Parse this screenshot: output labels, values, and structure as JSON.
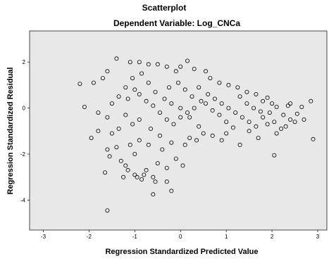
{
  "chart_data": {
    "type": "scatter",
    "title": "Scatterplot",
    "subtitle": "Dependent Variable: Log_CNCa",
    "xlabel": "Regression Standardized Predicted Value",
    "ylabel": "Regression Standardized Residual",
    "xlim": [
      -3.3,
      3.2
    ],
    "ylim": [
      -5.3,
      3.35
    ],
    "x_ticks": [
      -3,
      -2,
      -1,
      0,
      1,
      2,
      3
    ],
    "y_ticks": [
      2,
      0,
      -2,
      -4
    ],
    "grid": false,
    "plot_background": "#e8e8e8",
    "marker": "open-circle",
    "points": [
      [
        -1.95,
        -1.3
      ],
      [
        -1.6,
        -1.8
      ],
      [
        -1.8,
        -1.0
      ],
      [
        -1.5,
        -1.1
      ],
      [
        -1.4,
        -1.7
      ],
      [
        -1.3,
        -2.3
      ],
      [
        -1.2,
        -2.5
      ],
      [
        -1.1,
        -1.6
      ],
      [
        -1.0,
        -2.0
      ],
      [
        -0.9,
        -1.4
      ],
      [
        -1.35,
        -0.9
      ],
      [
        -1.0,
        -2.9
      ],
      [
        -0.8,
        -2.9
      ],
      [
        -0.6,
        -3.0
      ],
      [
        -0.3,
        -3.2
      ],
      [
        -0.2,
        -3.6
      ],
      [
        -0.55,
        -3.2
      ],
      [
        -0.85,
        -3.1
      ],
      [
        -1.25,
        -3.0
      ],
      [
        -0.6,
        -3.75
      ],
      [
        -0.2,
        -1.5
      ],
      [
        -0.4,
        -1.8
      ],
      [
        -0.7,
        -1.6
      ],
      [
        0.1,
        -1.6
      ],
      [
        0.2,
        -1.3
      ],
      [
        0.35,
        -1.4
      ],
      [
        0.5,
        -1.1
      ],
      [
        0.7,
        -1.2
      ],
      [
        1.0,
        -1.1
      ],
      [
        1.3,
        -1.6
      ],
      [
        1.5,
        -1.0
      ],
      [
        1.7,
        -1.3
      ],
      [
        2.05,
        -2.05
      ],
      [
        2.1,
        -1.1
      ],
      [
        2.3,
        -0.8
      ],
      [
        1.9,
        -0.7
      ],
      [
        2.5,
        -0.6
      ],
      [
        2.7,
        -0.5
      ],
      [
        2.9,
        -1.35
      ],
      [
        2.65,
        0.05
      ],
      [
        2.85,
        0.3
      ],
      [
        2.4,
        0.2
      ],
      [
        2.0,
        0.2
      ],
      [
        1.8,
        0.3
      ],
      [
        1.65,
        0.6
      ],
      [
        1.45,
        0.7
      ],
      [
        1.25,
        0.9
      ],
      [
        1.05,
        1.0
      ],
      [
        0.85,
        1.1
      ],
      [
        0.65,
        1.3
      ],
      [
        0.55,
        1.6
      ],
      [
        0.3,
        1.7
      ],
      [
        0.15,
        2.05
      ],
      [
        0.0,
        1.8
      ],
      [
        -0.1,
        1.6
      ],
      [
        -0.3,
        1.8
      ],
      [
        -0.5,
        1.9
      ],
      [
        -0.7,
        1.9
      ],
      [
        -0.9,
        2.0
      ],
      [
        -1.1,
        2.0
      ],
      [
        -1.4,
        2.15
      ],
      [
        -1.6,
        1.6
      ],
      [
        -1.7,
        1.3
      ],
      [
        -1.9,
        1.1
      ],
      [
        -2.2,
        1.05
      ],
      [
        -2.1,
        0.05
      ],
      [
        -1.8,
        -0.2
      ],
      [
        -1.6,
        -0.4
      ],
      [
        -1.5,
        0.2
      ],
      [
        -1.35,
        0.5
      ],
      [
        -1.2,
        0.9
      ],
      [
        -1.05,
        1.3
      ],
      [
        -0.9,
        0.6
      ],
      [
        -0.75,
        0.3
      ],
      [
        -0.6,
        0.1
      ],
      [
        -0.45,
        -0.2
      ],
      [
        -0.3,
        -0.5
      ],
      [
        -0.15,
        -0.7
      ],
      [
        0.0,
        -0.4
      ],
      [
        0.15,
        -0.2
      ],
      [
        0.3,
        0.0
      ],
      [
        0.45,
        0.3
      ],
      [
        0.6,
        0.6
      ],
      [
        0.75,
        0.4
      ],
      [
        0.9,
        0.2
      ],
      [
        1.05,
        0.0
      ],
      [
        1.2,
        -0.2
      ],
      [
        1.35,
        -0.4
      ],
      [
        1.5,
        -0.6
      ],
      [
        1.65,
        -0.8
      ],
      [
        1.8,
        -0.4
      ],
      [
        1.95,
        -0.2
      ],
      [
        2.1,
        0.05
      ],
      [
        2.25,
        -0.3
      ],
      [
        2.4,
        -0.5
      ],
      [
        -0.25,
        0.9
      ],
      [
        -0.05,
        1.1
      ],
      [
        0.1,
        0.8
      ],
      [
        0.25,
        0.5
      ],
      [
        0.4,
        0.9
      ],
      [
        0.55,
        0.2
      ],
      [
        0.7,
        -0.1
      ],
      [
        0.85,
        -0.3
      ],
      [
        1.0,
        -0.6
      ],
      [
        1.15,
        -0.85
      ],
      [
        -0.9,
        -0.5
      ],
      [
        -1.05,
        -0.7
      ],
      [
        -1.2,
        -0.3
      ],
      [
        -0.65,
        -0.9
      ],
      [
        -0.45,
        -1.2
      ],
      [
        -1.55,
        -2.1
      ],
      [
        -1.65,
        -2.8
      ],
      [
        -1.6,
        -4.45
      ],
      [
        -0.95,
        -3.0
      ],
      [
        -0.5,
        -2.4
      ],
      [
        -0.3,
        -2.6
      ],
      [
        -0.1,
        -2.2
      ],
      [
        0.05,
        -2.5
      ],
      [
        -0.75,
        -2.7
      ],
      [
        -1.15,
        -2.7
      ],
      [
        -0.35,
        0.4
      ],
      [
        -0.2,
        0.2
      ],
      [
        0.0,
        0.0
      ],
      [
        0.2,
        -0.4
      ],
      [
        0.4,
        -0.8
      ],
      [
        -0.55,
        0.7
      ],
      [
        -0.7,
        1.1
      ],
      [
        -0.85,
        1.5
      ],
      [
        -1.0,
        0.8
      ],
      [
        -1.15,
        0.4
      ],
      [
        1.3,
        0.5
      ],
      [
        1.45,
        0.2
      ],
      [
        1.6,
        0.0
      ],
      [
        1.75,
        -0.15
      ],
      [
        1.9,
        0.45
      ],
      [
        2.05,
        -0.6
      ],
      [
        2.2,
        -0.9
      ],
      [
        2.35,
        0.1
      ],
      [
        2.55,
        -0.25
      ],
      [
        0.9,
        -1.4
      ]
    ]
  }
}
